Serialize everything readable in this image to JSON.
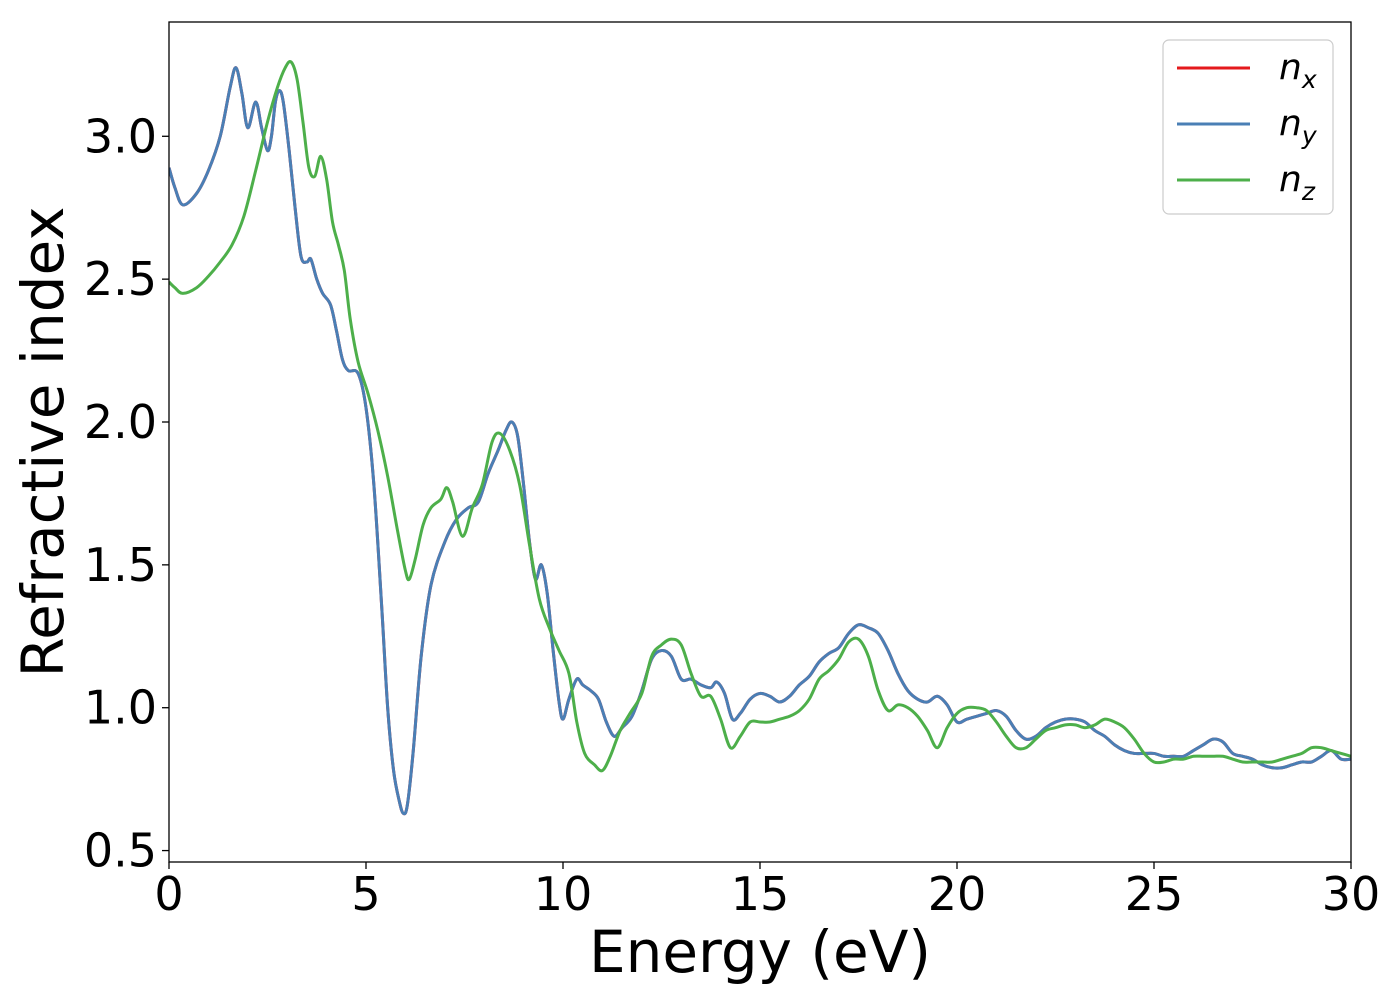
{
  "chart_data": {
    "type": "line",
    "xlabel": "Energy (eV)",
    "ylabel": "Refractive index",
    "xlim": [
      0,
      30
    ],
    "ylim": [
      0.46,
      3.4
    ],
    "xticks": [
      "0",
      "5",
      "10",
      "15",
      "20",
      "25",
      "30"
    ],
    "yticks": [
      "0.5",
      "1.0",
      "1.5",
      "2.0",
      "2.5",
      "3.0"
    ],
    "grid": false,
    "legend": "top-right",
    "series": [
      {
        "name": "n_x",
        "label_base": "n",
        "label_sub": "x",
        "color": "#e41a1c",
        "x": [
          0,
          0.15,
          0.35,
          0.7,
          1.0,
          1.3,
          1.55,
          1.7,
          1.85,
          2.0,
          2.2,
          2.35,
          2.5,
          2.6,
          2.7,
          2.8,
          2.9,
          3.05,
          3.2,
          3.35,
          3.5,
          3.6,
          3.75,
          3.9,
          4.1,
          4.25,
          4.4,
          4.55,
          4.8,
          5.0,
          5.2,
          5.4,
          5.55,
          5.7,
          5.85,
          5.95,
          6.05,
          6.2,
          6.4,
          6.65,
          7.0,
          7.3,
          7.6,
          7.85,
          8.1,
          8.35,
          8.55,
          8.7,
          8.85,
          9.0,
          9.15,
          9.3,
          9.45,
          9.6,
          9.75,
          9.9,
          10.0,
          10.15,
          10.35,
          10.5,
          10.7,
          10.9,
          11.1,
          11.3,
          11.5,
          11.75,
          12.0,
          12.25,
          12.5,
          12.75,
          13.0,
          13.25,
          13.5,
          13.75,
          13.9,
          14.1,
          14.3,
          14.5,
          14.75,
          15.0,
          15.25,
          15.5,
          15.75,
          16.0,
          16.25,
          16.5,
          16.75,
          17.0,
          17.25,
          17.5,
          17.75,
          18.0,
          18.25,
          18.5,
          18.75,
          19.0,
          19.25,
          19.5,
          19.75,
          20.0,
          20.25,
          20.5,
          20.75,
          21.0,
          21.25,
          21.5,
          21.75,
          22.0,
          22.25,
          22.5,
          22.75,
          23.0,
          23.25,
          23.5,
          23.75,
          24.0,
          24.25,
          24.5,
          24.75,
          25.0,
          25.25,
          25.5,
          25.75,
          26.0,
          26.25,
          26.5,
          26.75,
          27.0,
          27.25,
          27.5,
          27.75,
          28.0,
          28.25,
          28.5,
          28.75,
          29.0,
          29.25,
          29.5,
          29.75,
          30.0
        ],
        "y": [
          2.89,
          2.82,
          2.76,
          2.8,
          2.88,
          3.0,
          3.17,
          3.24,
          3.15,
          3.03,
          3.12,
          3.03,
          2.95,
          3.0,
          3.12,
          3.16,
          3.12,
          2.95,
          2.75,
          2.58,
          2.56,
          2.57,
          2.5,
          2.45,
          2.41,
          2.32,
          2.22,
          2.18,
          2.17,
          2.05,
          1.78,
          1.35,
          1.0,
          0.78,
          0.67,
          0.63,
          0.66,
          0.85,
          1.18,
          1.43,
          1.58,
          1.66,
          1.7,
          1.72,
          1.82,
          1.9,
          1.97,
          2.0,
          1.95,
          1.78,
          1.58,
          1.45,
          1.5,
          1.4,
          1.2,
          1.02,
          0.96,
          1.03,
          1.1,
          1.08,
          1.06,
          1.03,
          0.95,
          0.9,
          0.93,
          0.97,
          1.06,
          1.17,
          1.2,
          1.18,
          1.1,
          1.1,
          1.08,
          1.07,
          1.09,
          1.05,
          0.96,
          0.98,
          1.03,
          1.05,
          1.04,
          1.02,
          1.04,
          1.08,
          1.11,
          1.16,
          1.19,
          1.21,
          1.26,
          1.29,
          1.28,
          1.26,
          1.2,
          1.12,
          1.06,
          1.03,
          1.02,
          1.04,
          1.01,
          0.95,
          0.96,
          0.97,
          0.98,
          0.99,
          0.97,
          0.92,
          0.89,
          0.9,
          0.93,
          0.95,
          0.96,
          0.96,
          0.95,
          0.92,
          0.9,
          0.87,
          0.85,
          0.84,
          0.84,
          0.84,
          0.83,
          0.83,
          0.83,
          0.85,
          0.87,
          0.89,
          0.88,
          0.84,
          0.83,
          0.82,
          0.8,
          0.79,
          0.79,
          0.8,
          0.81,
          0.81,
          0.83,
          0.85,
          0.82,
          0.82
        ]
      },
      {
        "name": "n_y",
        "label_base": "n",
        "label_sub": "y",
        "color": "#4a7fb5",
        "x": [
          0,
          0.15,
          0.35,
          0.7,
          1.0,
          1.3,
          1.55,
          1.7,
          1.85,
          2.0,
          2.2,
          2.35,
          2.5,
          2.6,
          2.7,
          2.8,
          2.9,
          3.05,
          3.2,
          3.35,
          3.5,
          3.6,
          3.75,
          3.9,
          4.1,
          4.25,
          4.4,
          4.55,
          4.8,
          5.0,
          5.2,
          5.4,
          5.55,
          5.7,
          5.85,
          5.95,
          6.05,
          6.2,
          6.4,
          6.65,
          7.0,
          7.3,
          7.6,
          7.85,
          8.1,
          8.35,
          8.55,
          8.7,
          8.85,
          9.0,
          9.15,
          9.3,
          9.45,
          9.6,
          9.75,
          9.9,
          10.0,
          10.15,
          10.35,
          10.5,
          10.7,
          10.9,
          11.1,
          11.3,
          11.5,
          11.75,
          12.0,
          12.25,
          12.5,
          12.75,
          13.0,
          13.25,
          13.5,
          13.75,
          13.9,
          14.1,
          14.3,
          14.5,
          14.75,
          15.0,
          15.25,
          15.5,
          15.75,
          16.0,
          16.25,
          16.5,
          16.75,
          17.0,
          17.25,
          17.5,
          17.75,
          18.0,
          18.25,
          18.5,
          18.75,
          19.0,
          19.25,
          19.5,
          19.75,
          20.0,
          20.25,
          20.5,
          20.75,
          21.0,
          21.25,
          21.5,
          21.75,
          22.0,
          22.25,
          22.5,
          22.75,
          23.0,
          23.25,
          23.5,
          23.75,
          24.0,
          24.25,
          24.5,
          24.75,
          25.0,
          25.25,
          25.5,
          25.75,
          26.0,
          26.25,
          26.5,
          26.75,
          27.0,
          27.25,
          27.5,
          27.75,
          28.0,
          28.25,
          28.5,
          28.75,
          29.0,
          29.25,
          29.5,
          29.75,
          30.0
        ],
        "y": [
          2.89,
          2.82,
          2.76,
          2.8,
          2.88,
          3.0,
          3.17,
          3.24,
          3.15,
          3.03,
          3.12,
          3.03,
          2.95,
          3.0,
          3.12,
          3.16,
          3.12,
          2.95,
          2.75,
          2.58,
          2.56,
          2.57,
          2.5,
          2.45,
          2.41,
          2.32,
          2.22,
          2.18,
          2.17,
          2.05,
          1.78,
          1.35,
          1.0,
          0.78,
          0.67,
          0.63,
          0.66,
          0.85,
          1.18,
          1.43,
          1.58,
          1.66,
          1.7,
          1.72,
          1.82,
          1.9,
          1.97,
          2.0,
          1.95,
          1.78,
          1.58,
          1.45,
          1.5,
          1.4,
          1.2,
          1.02,
          0.96,
          1.03,
          1.1,
          1.08,
          1.06,
          1.03,
          0.95,
          0.9,
          0.93,
          0.97,
          1.06,
          1.17,
          1.2,
          1.18,
          1.1,
          1.1,
          1.08,
          1.07,
          1.09,
          1.05,
          0.96,
          0.98,
          1.03,
          1.05,
          1.04,
          1.02,
          1.04,
          1.08,
          1.11,
          1.16,
          1.19,
          1.21,
          1.26,
          1.29,
          1.28,
          1.26,
          1.2,
          1.12,
          1.06,
          1.03,
          1.02,
          1.04,
          1.01,
          0.95,
          0.96,
          0.97,
          0.98,
          0.99,
          0.97,
          0.92,
          0.89,
          0.9,
          0.93,
          0.95,
          0.96,
          0.96,
          0.95,
          0.92,
          0.9,
          0.87,
          0.85,
          0.84,
          0.84,
          0.84,
          0.83,
          0.83,
          0.83,
          0.85,
          0.87,
          0.89,
          0.88,
          0.84,
          0.83,
          0.82,
          0.8,
          0.79,
          0.79,
          0.8,
          0.81,
          0.81,
          0.83,
          0.85,
          0.82,
          0.82
        ]
      },
      {
        "name": "n_z",
        "label_base": "n",
        "label_sub": "z",
        "color": "#4daf4a",
        "x": [
          0,
          0.15,
          0.35,
          0.7,
          1.0,
          1.3,
          1.6,
          1.9,
          2.2,
          2.5,
          2.75,
          2.95,
          3.1,
          3.25,
          3.4,
          3.55,
          3.7,
          3.85,
          4.0,
          4.15,
          4.3,
          4.45,
          4.6,
          4.8,
          5.05,
          5.3,
          5.55,
          5.8,
          6.0,
          6.1,
          6.25,
          6.45,
          6.65,
          6.9,
          7.05,
          7.2,
          7.45,
          7.7,
          7.95,
          8.2,
          8.4,
          8.65,
          8.9,
          9.15,
          9.4,
          9.65,
          9.9,
          10.15,
          10.35,
          10.55,
          10.8,
          11.0,
          11.2,
          11.45,
          11.7,
          12.0,
          12.25,
          12.5,
          12.75,
          13.0,
          13.25,
          13.5,
          13.75,
          14.0,
          14.25,
          14.5,
          14.75,
          15.0,
          15.25,
          15.5,
          15.75,
          16.0,
          16.25,
          16.5,
          16.75,
          17.0,
          17.25,
          17.5,
          17.75,
          18.0,
          18.25,
          18.5,
          18.75,
          19.0,
          19.25,
          19.5,
          19.75,
          20.0,
          20.25,
          20.5,
          20.75,
          21.0,
          21.25,
          21.5,
          21.75,
          22.0,
          22.25,
          22.5,
          22.75,
          23.0,
          23.25,
          23.5,
          23.75,
          24.0,
          24.25,
          24.5,
          24.75,
          25.0,
          25.25,
          25.5,
          25.75,
          26.0,
          26.25,
          26.5,
          26.75,
          27.0,
          27.25,
          27.5,
          27.75,
          28.0,
          28.25,
          28.5,
          28.75,
          29.0,
          29.25,
          29.5,
          29.75,
          30.0
        ],
        "y": [
          2.49,
          2.47,
          2.45,
          2.47,
          2.51,
          2.56,
          2.62,
          2.72,
          2.88,
          3.05,
          3.17,
          3.24,
          3.26,
          3.2,
          3.05,
          2.89,
          2.86,
          2.93,
          2.85,
          2.7,
          2.62,
          2.53,
          2.36,
          2.21,
          2.1,
          1.97,
          1.81,
          1.62,
          1.48,
          1.45,
          1.52,
          1.64,
          1.7,
          1.73,
          1.77,
          1.72,
          1.6,
          1.7,
          1.78,
          1.93,
          1.96,
          1.9,
          1.78,
          1.57,
          1.38,
          1.28,
          1.2,
          1.12,
          0.95,
          0.84,
          0.8,
          0.78,
          0.83,
          0.92,
          0.98,
          1.05,
          1.18,
          1.22,
          1.24,
          1.22,
          1.12,
          1.04,
          1.04,
          0.96,
          0.86,
          0.9,
          0.95,
          0.95,
          0.95,
          0.96,
          0.97,
          0.99,
          1.03,
          1.1,
          1.13,
          1.17,
          1.23,
          1.24,
          1.18,
          1.06,
          0.99,
          1.01,
          1.0,
          0.97,
          0.92,
          0.86,
          0.93,
          0.98,
          1.0,
          1.0,
          0.99,
          0.95,
          0.9,
          0.86,
          0.86,
          0.89,
          0.92,
          0.93,
          0.94,
          0.94,
          0.93,
          0.94,
          0.96,
          0.95,
          0.93,
          0.89,
          0.84,
          0.81,
          0.81,
          0.82,
          0.82,
          0.83,
          0.83,
          0.83,
          0.83,
          0.82,
          0.81,
          0.81,
          0.81,
          0.81,
          0.82,
          0.83,
          0.84,
          0.86,
          0.86,
          0.85,
          0.84,
          0.83
        ]
      }
    ]
  }
}
